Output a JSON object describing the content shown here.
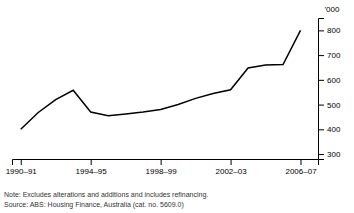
{
  "chart_data": {
    "type": "line",
    "x": [
      1990.5,
      1991.5,
      1992.5,
      1993.5,
      1994.5,
      1995.5,
      1996.5,
      1997.5,
      1998.5,
      1999.5,
      2000.5,
      2001.5,
      2002.5,
      2003.5,
      2004.5,
      2005.5,
      2006.5
    ],
    "values": [
      400,
      468,
      520,
      558,
      470,
      455,
      462,
      470,
      480,
      500,
      525,
      545,
      560,
      648,
      660,
      662,
      800
    ],
    "color": "#000000",
    "xlim": [
      1990.0,
      2007.5
    ],
    "xticks": [
      {
        "value": 1990.5,
        "label": "1990–91"
      },
      {
        "value": 1994.5,
        "label": "1994–95"
      },
      {
        "value": 1998.5,
        "label": "1998–99"
      },
      {
        "value": 2002.5,
        "label": "2002–03"
      },
      {
        "value": 2006.5,
        "label": "2006–07"
      }
    ],
    "ylim": [
      280,
      850
    ],
    "yticks": [
      300,
      400,
      500,
      600,
      700,
      800
    ],
    "ylabel": "'000",
    "annotations": [
      "Note: Excludes alterations and additions and includes refinancing.",
      "Source: ABS: Housing Finance, Australia (cat. no. 5609.0)"
    ]
  }
}
